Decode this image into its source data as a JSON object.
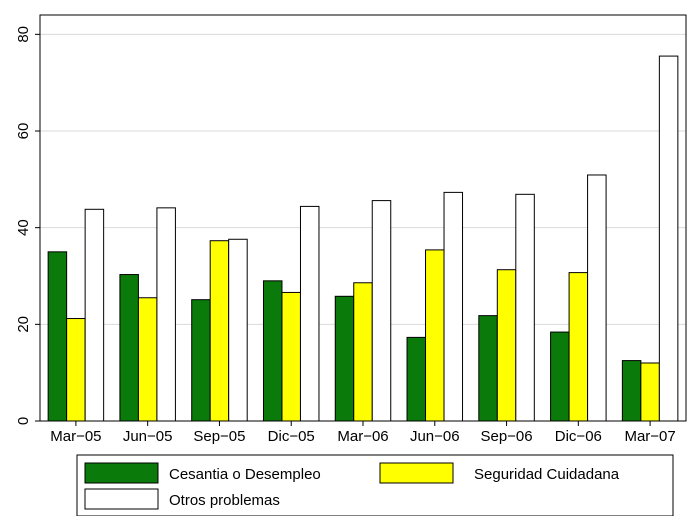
{
  "chart_data": {
    "type": "bar",
    "title": "",
    "xlabel": "",
    "ylabel": "",
    "categories": [
      "Mar−05",
      "Jun−05",
      "Sep−05",
      "Dic−05",
      "Mar−06",
      "Jun−06",
      "Sep−06",
      "Dic−06",
      "Mar−07"
    ],
    "series": [
      {
        "name": "Cesantia o Desempleo",
        "color": "#0a7a0a",
        "values": [
          35.0,
          30.3,
          25.1,
          29.0,
          25.8,
          17.3,
          21.8,
          18.4,
          12.5
        ]
      },
      {
        "name": "Seguridad Cuidadana",
        "color": "#ffff00",
        "values": [
          21.2,
          25.5,
          37.3,
          26.6,
          28.6,
          35.4,
          31.3,
          30.7,
          12.0
        ]
      },
      {
        "name": "Otros problemas",
        "color": "#ffffff",
        "values": [
          43.8,
          44.1,
          37.6,
          44.4,
          45.6,
          47.3,
          46.9,
          50.9,
          75.5
        ]
      }
    ],
    "ylim": [
      0,
      84
    ],
    "yticks": [
      0,
      20,
      40,
      60,
      80
    ],
    "ytick_labels": [
      "0",
      "20",
      "40",
      "60",
      "80"
    ],
    "grid": true,
    "legend_position": "bottom",
    "colors": {
      "axis": "#000000",
      "grid": "#d9d9d9",
      "bar_outline": "#000000"
    }
  }
}
